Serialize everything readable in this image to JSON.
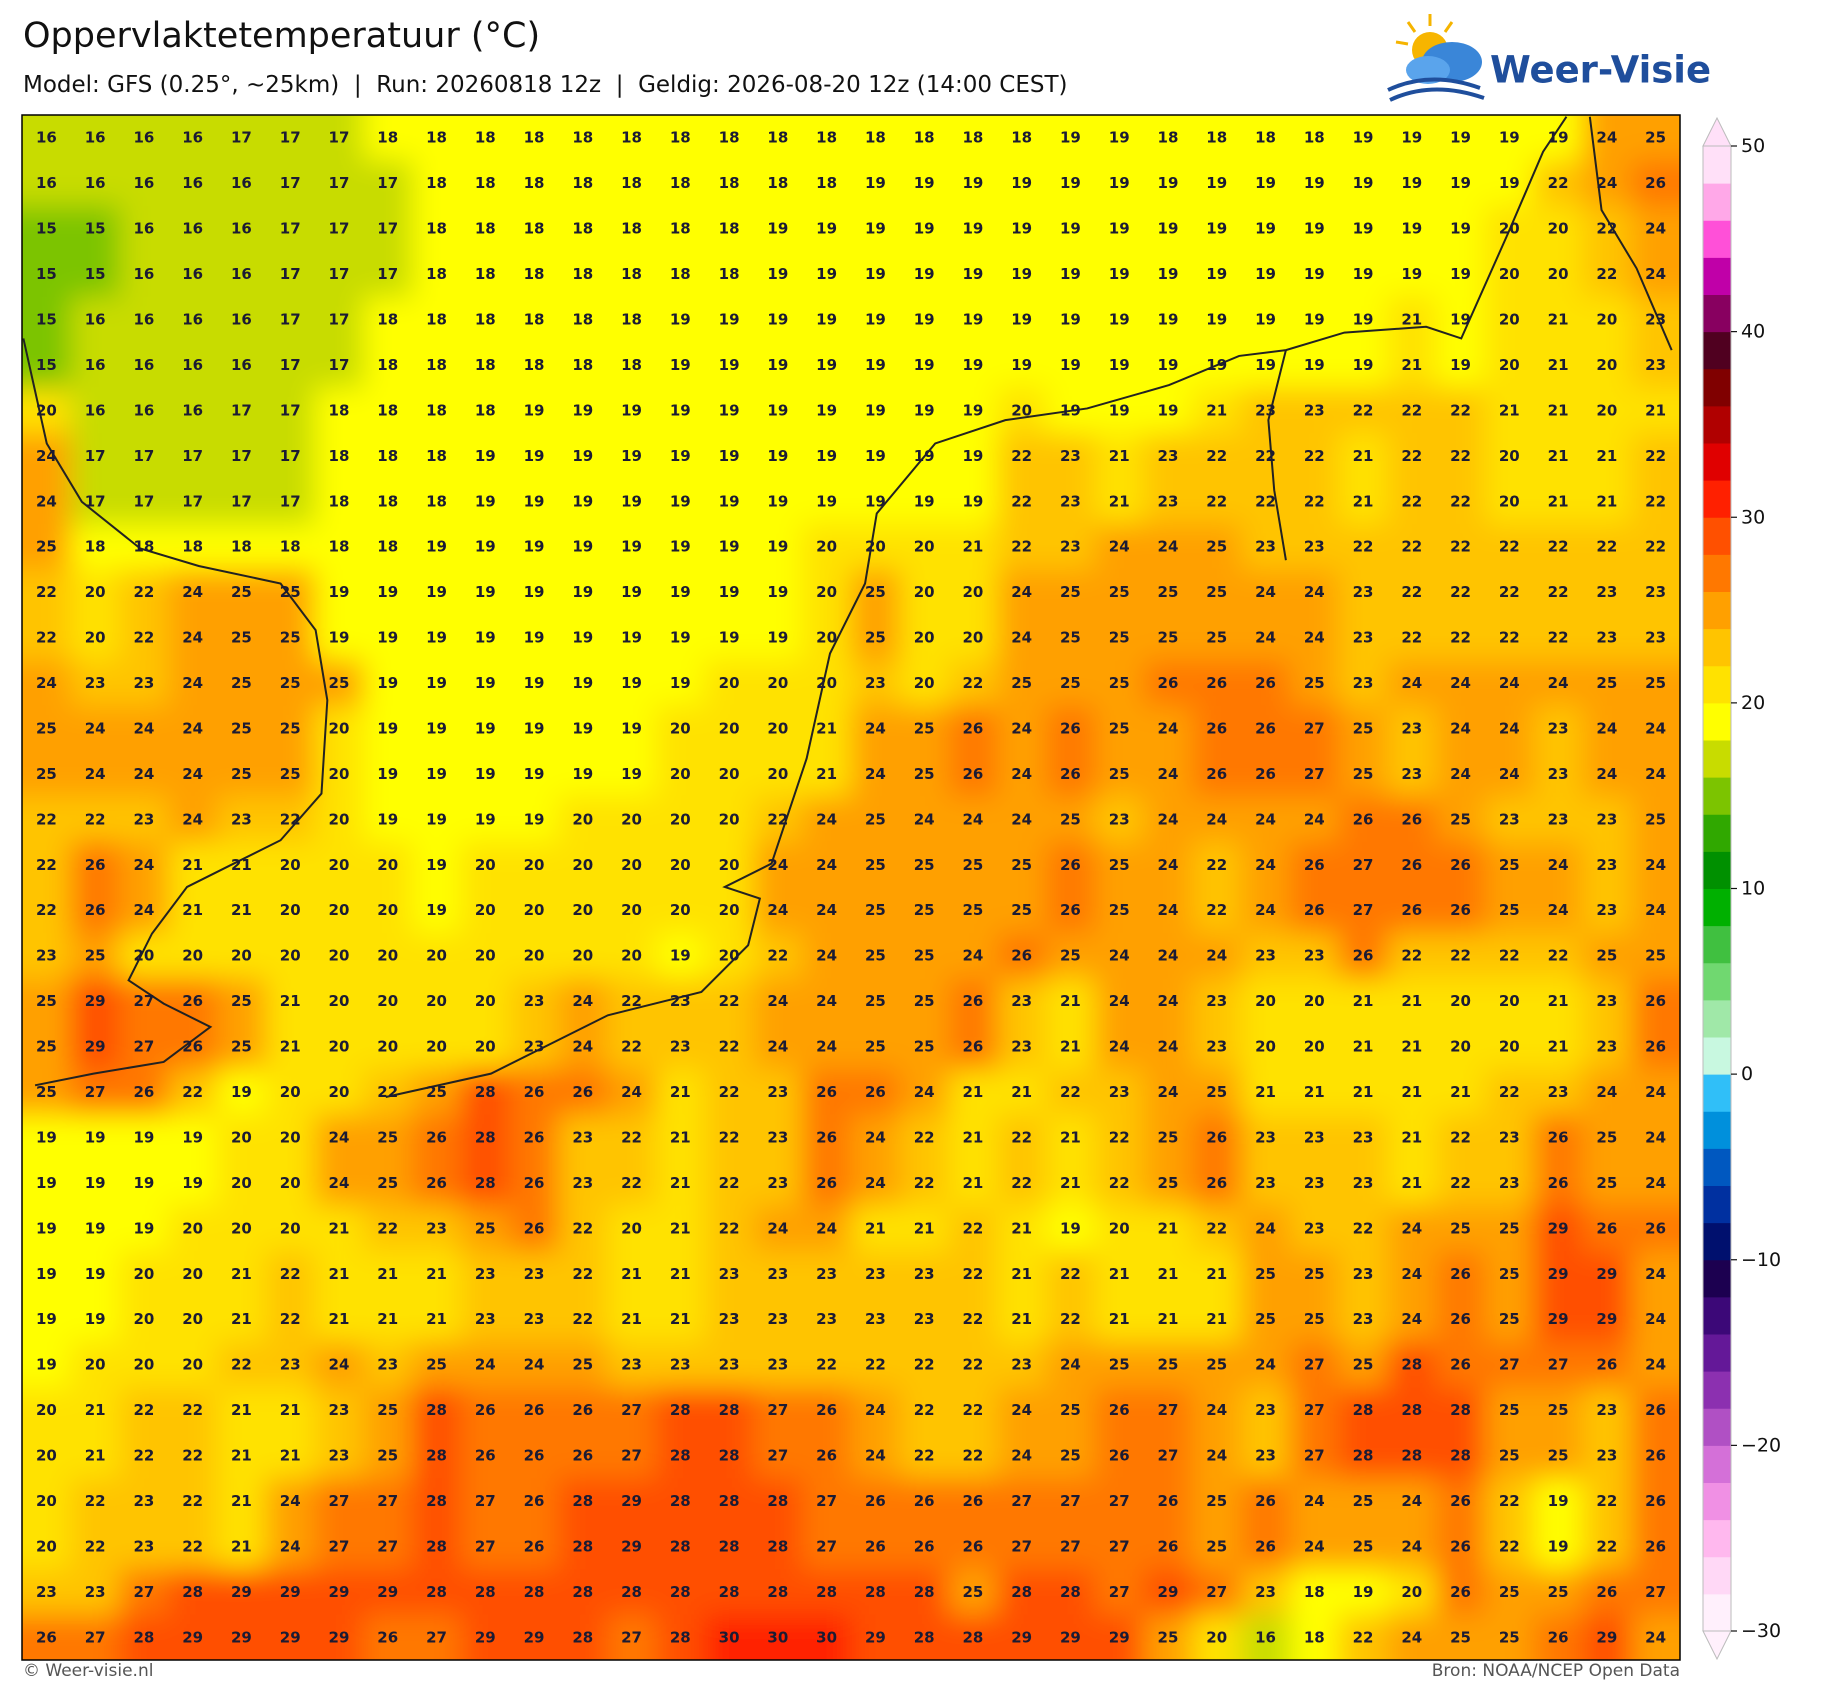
{
  "header": {
    "title": "Oppervlaktetemperatuur (°C)",
    "subtitle": "Model: GFS (0.25°, ~25km)  |  Run: 20260818 12z  |  Geldig: 2026-08-20 12z (14:00 CEST)"
  },
  "logo": {
    "text": "Weer-Visie"
  },
  "map": {
    "rows": [
      [
        16,
        16,
        16,
        16,
        17,
        17,
        17,
        18,
        18,
        18,
        18,
        18,
        18,
        18,
        18,
        18,
        18,
        18,
        18,
        18,
        18,
        19,
        19,
        18,
        18,
        18,
        18,
        19,
        19,
        19,
        19,
        19,
        24,
        25
      ],
      [
        16,
        16,
        16,
        16,
        16,
        17,
        17,
        17,
        18,
        18,
        18,
        18,
        18,
        18,
        18,
        18,
        18,
        19,
        19,
        19,
        19,
        19,
        19,
        19,
        19,
        19,
        19,
        19,
        19,
        19,
        19,
        22,
        24,
        26
      ],
      [
        15,
        15,
        16,
        16,
        16,
        17,
        17,
        17,
        18,
        18,
        18,
        18,
        18,
        18,
        18,
        19,
        19,
        19,
        19,
        19,
        19,
        19,
        19,
        19,
        19,
        19,
        19,
        19,
        19,
        19,
        20,
        20,
        22,
        24
      ],
      [
        15,
        15,
        16,
        16,
        16,
        17,
        17,
        17,
        18,
        18,
        18,
        18,
        18,
        18,
        18,
        19,
        19,
        19,
        19,
        19,
        19,
        19,
        19,
        19,
        19,
        19,
        19,
        19,
        19,
        19,
        20,
        20,
        22,
        24
      ],
      [
        15,
        16,
        16,
        16,
        16,
        17,
        17,
        18,
        18,
        18,
        18,
        18,
        18,
        19,
        19,
        19,
        19,
        19,
        19,
        19,
        19,
        19,
        19,
        19,
        19,
        19,
        19,
        19,
        21,
        19,
        20,
        21,
        20,
        23
      ],
      [
        15,
        16,
        16,
        16,
        16,
        17,
        17,
        18,
        18,
        18,
        18,
        18,
        18,
        19,
        19,
        19,
        19,
        19,
        19,
        19,
        19,
        19,
        19,
        19,
        19,
        19,
        19,
        19,
        21,
        19,
        20,
        21,
        20,
        23
      ],
      [
        20,
        16,
        16,
        16,
        17,
        17,
        18,
        18,
        18,
        18,
        19,
        19,
        19,
        19,
        19,
        19,
        19,
        19,
        19,
        19,
        20,
        19,
        19,
        19,
        21,
        23,
        23,
        22,
        22,
        22,
        21,
        21,
        20,
        21
      ],
      [
        24,
        17,
        17,
        17,
        17,
        17,
        18,
        18,
        18,
        19,
        19,
        19,
        19,
        19,
        19,
        19,
        19,
        19,
        19,
        19,
        22,
        23,
        21,
        23,
        22,
        22,
        22,
        21,
        22,
        22,
        20,
        21,
        21,
        22
      ],
      [
        24,
        17,
        17,
        17,
        17,
        17,
        18,
        18,
        18,
        19,
        19,
        19,
        19,
        19,
        19,
        19,
        19,
        19,
        19,
        19,
        22,
        23,
        21,
        23,
        22,
        22,
        22,
        21,
        22,
        22,
        20,
        21,
        21,
        22
      ],
      [
        25,
        18,
        18,
        18,
        18,
        18,
        18,
        18,
        19,
        19,
        19,
        19,
        19,
        19,
        19,
        19,
        20,
        20,
        20,
        21,
        22,
        23,
        24,
        24,
        25,
        23,
        23,
        22,
        22,
        22,
        22,
        22,
        22,
        22
      ],
      [
        22,
        20,
        22,
        24,
        25,
        25,
        19,
        19,
        19,
        19,
        19,
        19,
        19,
        19,
        19,
        19,
        20,
        25,
        20,
        20,
        24,
        25,
        25,
        25,
        25,
        24,
        24,
        23,
        22,
        22,
        22,
        22,
        23,
        23
      ],
      [
        22,
        20,
        22,
        24,
        25,
        25,
        19,
        19,
        19,
        19,
        19,
        19,
        19,
        19,
        19,
        19,
        20,
        25,
        20,
        20,
        24,
        25,
        25,
        25,
        25,
        24,
        24,
        23,
        22,
        22,
        22,
        22,
        23,
        23
      ],
      [
        24,
        23,
        23,
        24,
        25,
        25,
        25,
        19,
        19,
        19,
        19,
        19,
        19,
        19,
        20,
        20,
        20,
        23,
        20,
        22,
        25,
        25,
        25,
        26,
        26,
        26,
        25,
        23,
        24,
        24,
        24,
        24,
        25,
        25
      ],
      [
        25,
        24,
        24,
        24,
        25,
        25,
        20,
        19,
        19,
        19,
        19,
        19,
        19,
        20,
        20,
        20,
        21,
        24,
        25,
        26,
        24,
        26,
        25,
        24,
        26,
        26,
        27,
        25,
        23,
        24,
        24,
        23,
        24,
        24
      ],
      [
        25,
        24,
        24,
        24,
        25,
        25,
        20,
        19,
        19,
        19,
        19,
        19,
        19,
        20,
        20,
        20,
        21,
        24,
        25,
        26,
        24,
        26,
        25,
        24,
        26,
        26,
        27,
        25,
        23,
        24,
        24,
        23,
        24,
        24
      ],
      [
        22,
        22,
        23,
        24,
        23,
        22,
        20,
        19,
        19,
        19,
        19,
        20,
        20,
        20,
        20,
        22,
        24,
        25,
        24,
        24,
        24,
        25,
        23,
        24,
        24,
        24,
        24,
        26,
        26,
        25,
        23,
        23,
        23,
        25
      ],
      [
        22,
        26,
        24,
        21,
        21,
        20,
        20,
        20,
        19,
        20,
        20,
        20,
        20,
        20,
        20,
        24,
        24,
        25,
        25,
        25,
        25,
        26,
        25,
        24,
        22,
        24,
        26,
        27,
        26,
        26,
        25,
        24,
        23,
        24
      ],
      [
        22,
        26,
        24,
        21,
        21,
        20,
        20,
        20,
        19,
        20,
        20,
        20,
        20,
        20,
        20,
        24,
        24,
        25,
        25,
        25,
        25,
        26,
        25,
        24,
        22,
        24,
        26,
        27,
        26,
        26,
        25,
        24,
        23,
        24
      ],
      [
        23,
        25,
        20,
        20,
        20,
        20,
        20,
        20,
        20,
        20,
        20,
        20,
        20,
        19,
        20,
        22,
        24,
        25,
        25,
        24,
        26,
        25,
        24,
        24,
        24,
        23,
        23,
        26,
        22,
        22,
        22,
        22,
        25,
        25
      ],
      [
        25,
        29,
        27,
        26,
        25,
        21,
        20,
        20,
        20,
        20,
        23,
        24,
        22,
        23,
        22,
        24,
        24,
        25,
        25,
        26,
        23,
        21,
        24,
        24,
        23,
        20,
        20,
        21,
        21,
        20,
        20,
        21,
        23,
        26
      ],
      [
        25,
        29,
        27,
        26,
        25,
        21,
        20,
        20,
        20,
        20,
        23,
        24,
        22,
        23,
        22,
        24,
        24,
        25,
        25,
        26,
        23,
        21,
        24,
        24,
        23,
        20,
        20,
        21,
        21,
        20,
        20,
        21,
        23,
        26
      ],
      [
        25,
        27,
        26,
        22,
        19,
        20,
        20,
        22,
        25,
        28,
        26,
        26,
        24,
        21,
        22,
        23,
        26,
        26,
        24,
        21,
        21,
        22,
        23,
        24,
        25,
        21,
        21,
        21,
        21,
        21,
        22,
        23,
        24,
        24
      ],
      [
        19,
        19,
        19,
        19,
        20,
        20,
        24,
        25,
        26,
        28,
        26,
        23,
        22,
        21,
        22,
        23,
        26,
        24,
        22,
        21,
        22,
        21,
        22,
        25,
        26,
        23,
        23,
        23,
        21,
        22,
        23,
        26,
        25,
        24
      ],
      [
        19,
        19,
        19,
        19,
        20,
        20,
        24,
        25,
        26,
        28,
        26,
        23,
        22,
        21,
        22,
        23,
        26,
        24,
        22,
        21,
        22,
        21,
        22,
        25,
        26,
        23,
        23,
        23,
        21,
        22,
        23,
        26,
        25,
        24
      ],
      [
        19,
        19,
        19,
        20,
        20,
        20,
        21,
        22,
        23,
        25,
        26,
        22,
        20,
        21,
        22,
        24,
        24,
        21,
        21,
        22,
        21,
        19,
        20,
        21,
        22,
        24,
        23,
        22,
        24,
        25,
        25,
        29,
        26,
        26
      ],
      [
        19,
        19,
        20,
        20,
        21,
        22,
        21,
        21,
        21,
        23,
        23,
        22,
        21,
        21,
        23,
        23,
        23,
        23,
        23,
        22,
        21,
        22,
        21,
        21,
        21,
        25,
        25,
        23,
        24,
        26,
        25,
        29,
        29,
        24
      ],
      [
        19,
        19,
        20,
        20,
        21,
        22,
        21,
        21,
        21,
        23,
        23,
        22,
        21,
        21,
        23,
        23,
        23,
        23,
        23,
        22,
        21,
        22,
        21,
        21,
        21,
        25,
        25,
        23,
        24,
        26,
        25,
        29,
        29,
        24
      ],
      [
        19,
        20,
        20,
        20,
        22,
        23,
        24,
        23,
        25,
        24,
        24,
        25,
        23,
        23,
        23,
        23,
        22,
        22,
        22,
        22,
        23,
        24,
        25,
        25,
        25,
        24,
        27,
        25,
        28,
        26,
        27,
        27,
        26,
        24
      ],
      [
        20,
        21,
        22,
        22,
        21,
        21,
        23,
        25,
        28,
        26,
        26,
        26,
        27,
        28,
        28,
        27,
        26,
        24,
        22,
        22,
        24,
        25,
        26,
        27,
        24,
        23,
        27,
        28,
        28,
        28,
        25,
        25,
        23,
        26
      ],
      [
        20,
        21,
        22,
        22,
        21,
        21,
        23,
        25,
        28,
        26,
        26,
        26,
        27,
        28,
        28,
        27,
        26,
        24,
        22,
        22,
        24,
        25,
        26,
        27,
        24,
        23,
        27,
        28,
        28,
        28,
        25,
        25,
        23,
        26
      ],
      [
        20,
        22,
        23,
        22,
        21,
        24,
        27,
        27,
        28,
        27,
        26,
        28,
        29,
        28,
        28,
        28,
        27,
        26,
        26,
        26,
        27,
        27,
        27,
        26,
        25,
        26,
        24,
        25,
        24,
        26,
        22,
        19,
        22,
        26
      ],
      [
        20,
        22,
        23,
        22,
        21,
        24,
        27,
        27,
        28,
        27,
        26,
        28,
        29,
        28,
        28,
        28,
        27,
        26,
        26,
        26,
        27,
        27,
        27,
        26,
        25,
        26,
        24,
        25,
        24,
        26,
        22,
        19,
        22,
        26
      ],
      [
        23,
        23,
        27,
        28,
        29,
        29,
        29,
        29,
        28,
        28,
        28,
        28,
        28,
        28,
        28,
        28,
        28,
        28,
        28,
        25,
        28,
        28,
        27,
        29,
        27,
        23,
        18,
        19,
        20,
        26,
        25,
        25,
        26,
        27
      ],
      [
        26,
        27,
        28,
        29,
        29,
        29,
        29,
        26,
        27,
        29,
        29,
        28,
        27,
        28,
        30,
        30,
        30,
        29,
        28,
        28,
        29,
        29,
        29,
        25,
        20,
        16,
        18,
        22,
        24,
        25,
        25,
        26,
        29,
        24
      ]
    ]
  },
  "colorbar": {
    "ticks": [
      {
        "value": -30,
        "label": "−30"
      },
      {
        "value": -20,
        "label": "−20"
      },
      {
        "value": -10,
        "label": "−10"
      },
      0,
      10,
      20,
      30,
      40,
      50
    ],
    "bounds": [
      -30,
      -28,
      -26,
      -24,
      -22,
      -20,
      -18,
      -16,
      -14,
      -12,
      -10,
      -8,
      -6,
      -4,
      -2,
      0,
      2,
      4,
      6,
      8,
      10,
      12,
      14,
      16,
      18,
      20,
      22,
      24,
      26,
      28,
      30,
      32,
      34,
      36,
      38,
      40,
      42,
      44,
      46,
      48,
      50
    ],
    "colors": [
      "#fff0fc",
      "#ffd8f6",
      "#ffb8ee",
      "#f090e4",
      "#d470d8",
      "#b050c4",
      "#8c30b0",
      "#641898",
      "#3c0878",
      "#1c0050",
      "#00106e",
      "#0030a0",
      "#0058c0",
      "#0090dc",
      "#30bff8",
      "#c8f8e0",
      "#a0e8a8",
      "#70d870",
      "#40c040",
      "#00b000",
      "#009000",
      "#30a800",
      "#7cc400",
      "#c8dc00",
      "#ffff00",
      "#ffe200",
      "#ffc400",
      "#ffa000",
      "#ff7800",
      "#ff5000",
      "#ff2000",
      "#e00000",
      "#b00000",
      "#800000",
      "#500020",
      "#880060",
      "#c000a8",
      "#ff50d8",
      "#ffa8e8",
      "#ffe0f8"
    ]
  },
  "footer": {
    "left": "© Weer-visie.nl",
    "right": "Bron: NOAA/NCEP Open Data"
  }
}
